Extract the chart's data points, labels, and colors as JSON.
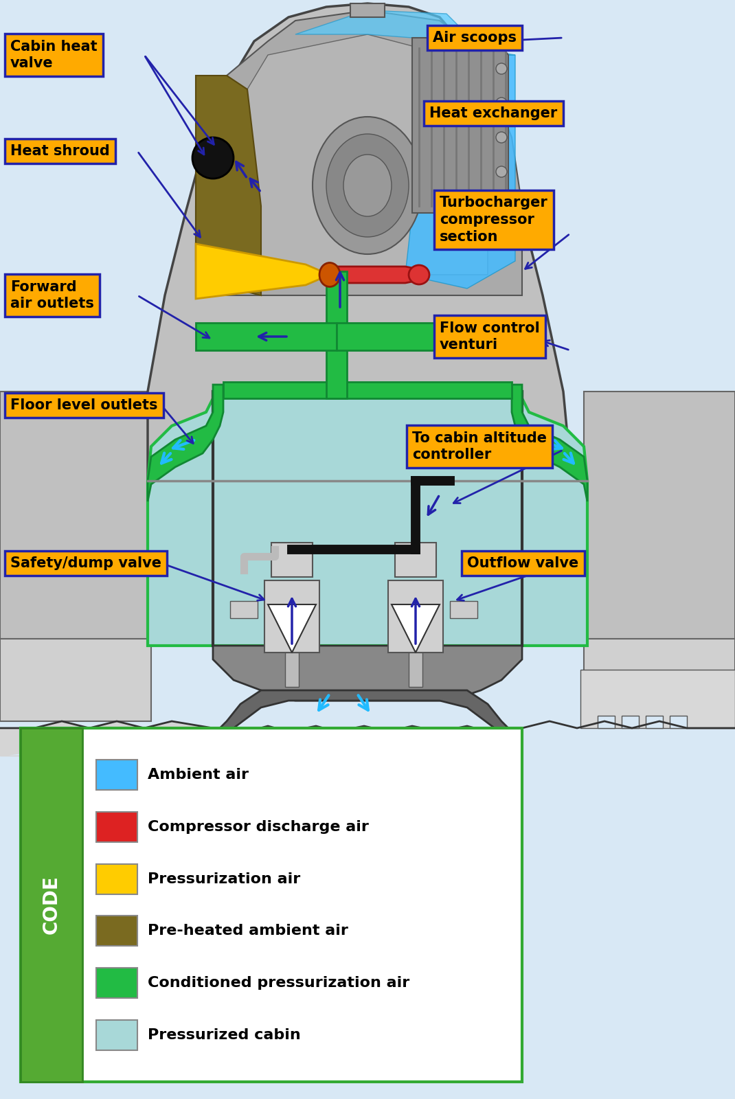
{
  "bg_color": "#d8e8f5",
  "label_bg": "#ffaa00",
  "label_border": "#2222aa",
  "arrow_color": "#2222aa",
  "cabin_color": "#a8d8d8",
  "conditioned_color": "#22bb44",
  "legend_items": [
    {
      "color": "#44bbff",
      "label": "Ambient air"
    },
    {
      "color": "#dd2222",
      "label": "Compressor discharge air"
    },
    {
      "color": "#ffcc00",
      "label": "Pressurization air"
    },
    {
      "color": "#7a6a20",
      "label": "Pre-heated ambient air"
    },
    {
      "color": "#22bb44",
      "label": "Conditioned pressurization air"
    },
    {
      "color": "#a8d8d8",
      "label": "Pressurized cabin"
    }
  ]
}
